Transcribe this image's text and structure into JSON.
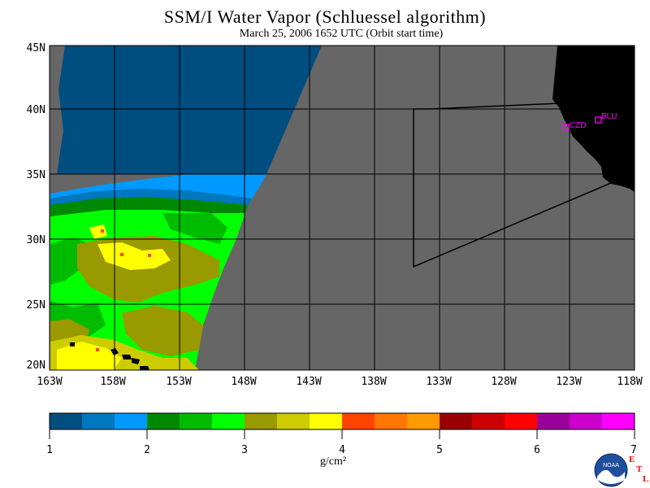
{
  "title": "SSM/I Water Vapor (Schluessel algorithm)",
  "subtitle": "March 25, 2006  1652 UTC  (Orbit start time)",
  "map": {
    "lat_labels": [
      "45N",
      "40N",
      "35N",
      "30N",
      "25N",
      "20N"
    ],
    "lon_labels": [
      "163W",
      "158W",
      "153W",
      "148W",
      "143W",
      "138W",
      "133W",
      "128W",
      "123W",
      "118W"
    ],
    "lat_range": [
      20,
      45
    ],
    "lon_range": [
      -163,
      -118
    ],
    "stations": [
      {
        "id": "CZD",
        "label": "CZD",
        "lat": 38.6,
        "lon": -123.2
      },
      {
        "id": "BLU",
        "label": "BLU",
        "lat": 39.3,
        "lon": -120.8
      }
    ],
    "colors": {
      "no_data": "#666666",
      "land": "#000000",
      "station": "#ff00ff"
    }
  },
  "colorbar": {
    "unit": "g/cm²",
    "ticks": [
      "1",
      "2",
      "3",
      "4",
      "5",
      "6",
      "7"
    ],
    "range": [
      1,
      7
    ],
    "colors": [
      "#004d80",
      "#0077bf",
      "#0099ff",
      "#008800",
      "#00bb00",
      "#00ff00",
      "#999900",
      "#cccc00",
      "#ffff00",
      "#ff4400",
      "#ff7700",
      "#ff9900",
      "#990000",
      "#cc0000",
      "#ff0000",
      "#990099",
      "#cc00cc",
      "#ff00ff"
    ]
  },
  "logo": {
    "text": "NOAA",
    "etl_letters": [
      "E",
      "T",
      "L"
    ]
  }
}
